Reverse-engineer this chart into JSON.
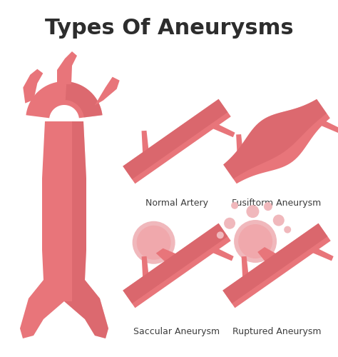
{
  "title": "Types Of Aneurysms",
  "title_fontsize": 22,
  "title_color": "#2d2d2d",
  "bg_color": "#ffffff",
  "artery_color_main": "#e8757a",
  "artery_color_dark": "#c9585e",
  "artery_color_light": "#f0a8ac",
  "aneurysm_color": "#f0b8bc",
  "labels": [
    "Normal Artery",
    "Fusiftorm Aneurysm",
    "Saccular Aneurysm",
    "Ruptured Aneurysm"
  ],
  "label_fontsize": 9,
  "label_color": "#3d3d3d"
}
